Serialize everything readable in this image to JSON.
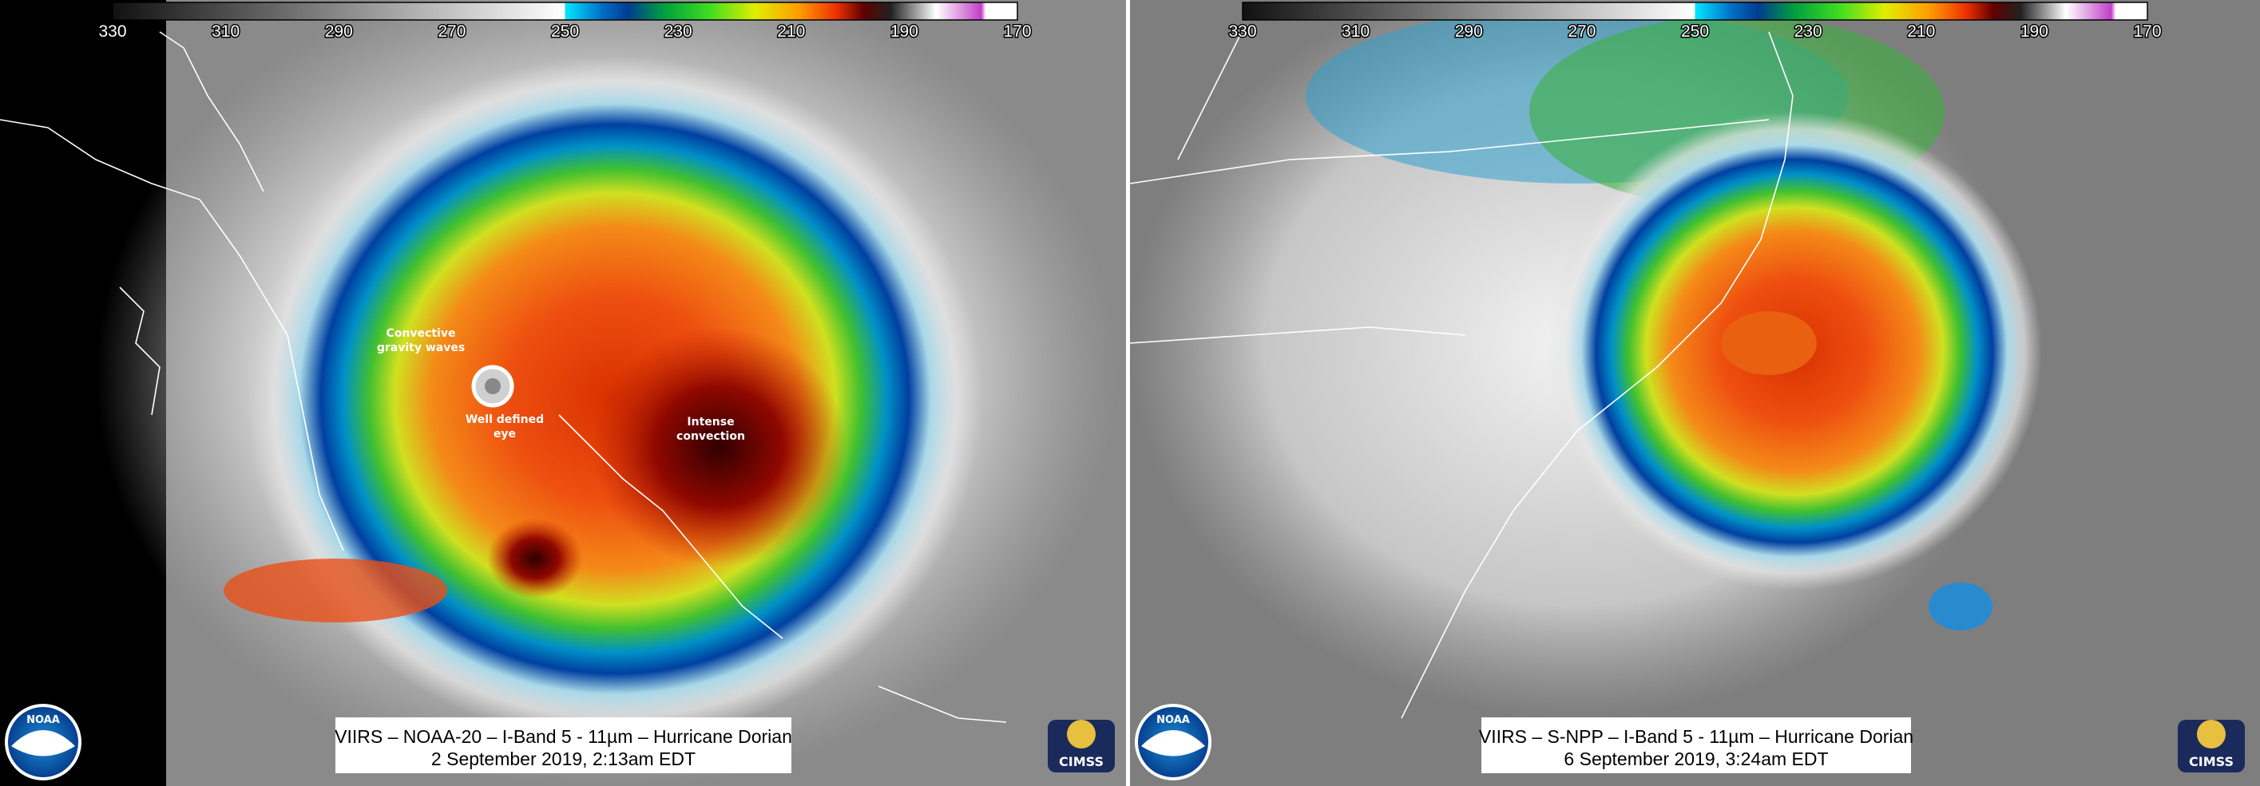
{
  "panels": [
    {
      "colorbar": {
        "ticks": [
          330,
          310,
          290,
          270,
          250,
          230,
          210,
          190,
          170
        ]
      },
      "annotations": [
        [
          "Convective",
          "gravity waves"
        ],
        [
          "Well defined",
          "eye"
        ],
        [
          "Intense",
          "convection"
        ]
      ],
      "caption": [
        "VIIRS – NOAA-20 – I-Band 5 - 11µm – Hurricane Dorian",
        "2 September 2019, 2:13am EDT"
      ],
      "logos": [
        "NOAA",
        "CIMSS"
      ]
    },
    {
      "colorbar": {
        "ticks": [
          330,
          310,
          290,
          270,
          250,
          230,
          210,
          190,
          170
        ]
      },
      "annotations": [],
      "caption": [
        "VIIRS – S-NPP – I-Band 5 - 11µm – Hurricane Dorian",
        "6 September 2019, 3:24am EDT"
      ],
      "logos": [
        "NOAA",
        "CIMSS"
      ]
    }
  ]
}
